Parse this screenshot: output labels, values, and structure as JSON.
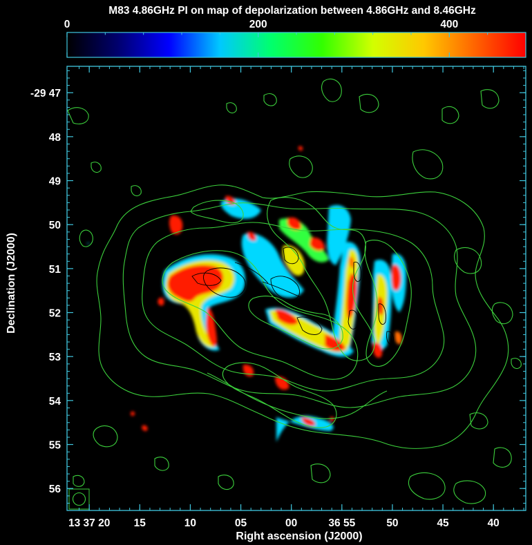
{
  "chart_data": {
    "type": "heatmap",
    "title": "M83 4.86GHz PI on map of depolarization between 4.86GHz and 8.46GHz",
    "xlabel": "Right ascension (J2000)",
    "ylabel": "Declination (J2000)",
    "colorbar": {
      "range": [
        0,
        480
      ],
      "ticks": [
        0,
        200,
        400
      ],
      "tick_labels": [
        "0",
        "200",
        "400"
      ],
      "colormap": [
        "#000000",
        "#00006e",
        "#0000ff",
        "#00c8ff",
        "#00ff6e",
        "#32ff00",
        "#d2ff00",
        "#ffc800",
        "#ff6400",
        "#ff0000"
      ]
    },
    "x_ticks": {
      "labels": [
        "13 37 20",
        "15",
        "10",
        "05",
        "00",
        "36 55",
        "50",
        "45",
        "40"
      ],
      "seconds": [
        80,
        75,
        70,
        65,
        60,
        55,
        50,
        45,
        40
      ],
      "range_seconds": [
        82.2,
        36.8
      ]
    },
    "y_ticks": {
      "labels": [
        "-29 47",
        "48",
        "49",
        "50",
        "51",
        "52",
        "53",
        "54",
        "55",
        "56"
      ],
      "arcmin": [
        47,
        48,
        49,
        50,
        51,
        52,
        53,
        54,
        55,
        56
      ],
      "range_arcmin": [
        46.4,
        56.5
      ]
    },
    "frame_color": "#40c8e0",
    "contour_color_outer": "#3cd03c",
    "contour_color_inner": "#000000",
    "beam_marker": "circle in lower-left corner"
  }
}
